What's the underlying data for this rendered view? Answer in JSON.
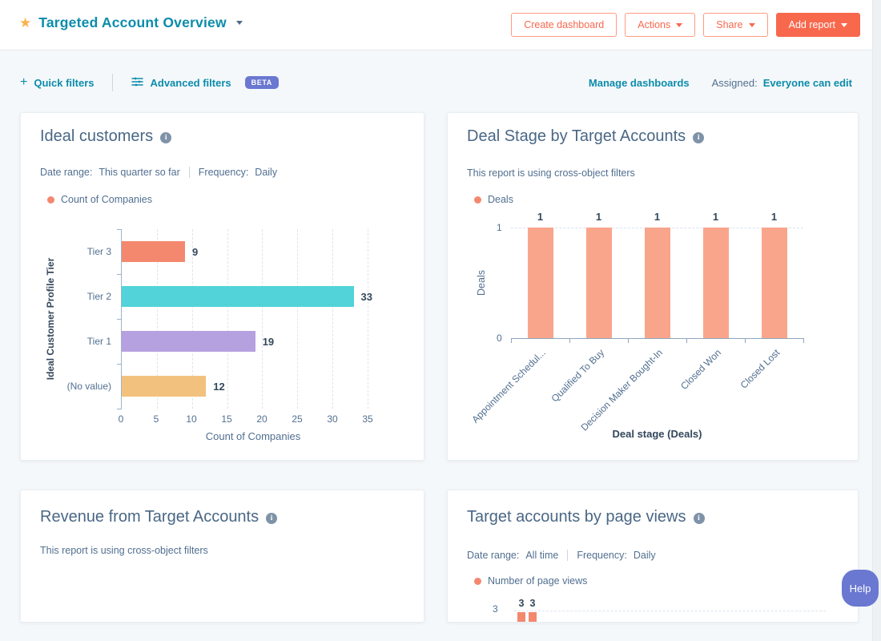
{
  "header": {
    "title": "Targeted Account Overview",
    "create_dashboard": "Create dashboard",
    "actions": "Actions",
    "share": "Share",
    "add_report": "Add report"
  },
  "filter_bar": {
    "quick_filters": "Quick filters",
    "advanced_filters": "Advanced filters",
    "beta_badge": "BETA",
    "manage_dashboards": "Manage dashboards",
    "assigned_label": "Assigned:",
    "assigned_value": "Everyone can edit"
  },
  "icons": {
    "star": "★",
    "plus": "+",
    "info": "i"
  },
  "help_button": "Help",
  "cards": {
    "ideal_customers": {
      "title": "Ideal customers",
      "date_range_label": "Date range:",
      "date_range": "This quarter so far",
      "frequency_label": "Frequency:",
      "frequency": "Daily",
      "legend": "Count of Companies"
    },
    "deal_stage": {
      "title": "Deal Stage by Target Accounts",
      "note": "This report is using cross-object filters",
      "legend": "Deals"
    },
    "revenue": {
      "title": "Revenue from Target Accounts",
      "note": "This report is using cross-object filters"
    },
    "page_views": {
      "title": "Target accounts by page views",
      "date_range_label": "Date range:",
      "date_range": "All time",
      "frequency_label": "Frequency:",
      "frequency": "Daily",
      "legend": "Number of page views"
    }
  },
  "chart_data": [
    {
      "id": "ideal-customers-chart",
      "type": "bar",
      "orientation": "horizontal",
      "title": "Ideal customers",
      "categories": [
        "Tier 3",
        "Tier 2",
        "Tier 1",
        "(No value)"
      ],
      "values": [
        9,
        33,
        19,
        12
      ],
      "bar_colors": [
        "#f4886e",
        "#51d3d9",
        "#b6a1e0",
        "#f3c17e"
      ],
      "xlabel": "Count of Companies",
      "ylabel": "Ideal Customer Profile Tier",
      "xticks": [
        0,
        5,
        10,
        15,
        20,
        25,
        30,
        35
      ],
      "xlim": [
        0,
        37.5
      ],
      "grid": "dashed-vertical",
      "legend": [
        {
          "label": "Count of Companies",
          "color": "#f4886e"
        }
      ]
    },
    {
      "id": "deal-stage-chart",
      "type": "bar",
      "orientation": "vertical",
      "title": "Deal Stage by Target Accounts",
      "categories": [
        "Appointment Schedul...",
        "Qualified To Buy",
        "Decision Maker Bought-In",
        "Closed Won",
        "Closed Lost"
      ],
      "values": [
        1,
        1,
        1,
        1,
        1
      ],
      "bar_color": "#f9a58b",
      "xlabel": "Deal stage (Deals)",
      "ylabel": "Deals",
      "yticks": [
        0,
        1
      ],
      "ylim": [
        0,
        1
      ],
      "grid": "dashed-top",
      "legend": [
        {
          "label": "Deals",
          "color": "#f4886e"
        }
      ]
    },
    {
      "id": "page-views-chart",
      "type": "bar",
      "orientation": "vertical",
      "title": "Target accounts by page views",
      "values": [
        3,
        3
      ],
      "ytick": 3,
      "bar_color": "#f4886e",
      "legend": [
        {
          "label": "Number of page views",
          "color": "#f4886e"
        }
      ]
    }
  ],
  "colors": {
    "accent_teal": "#0b8cab",
    "accent_orange": "#f8684d",
    "outline_button_border": "#ff9b82",
    "star": "#f9b24b",
    "beta_purple": "#6a78d1",
    "help_purple": "#6a78d1",
    "heading_slate": "#4a6785",
    "text_slate": "#516f90",
    "value_label": "#33475b",
    "page_bg": "#f5f8fa"
  }
}
